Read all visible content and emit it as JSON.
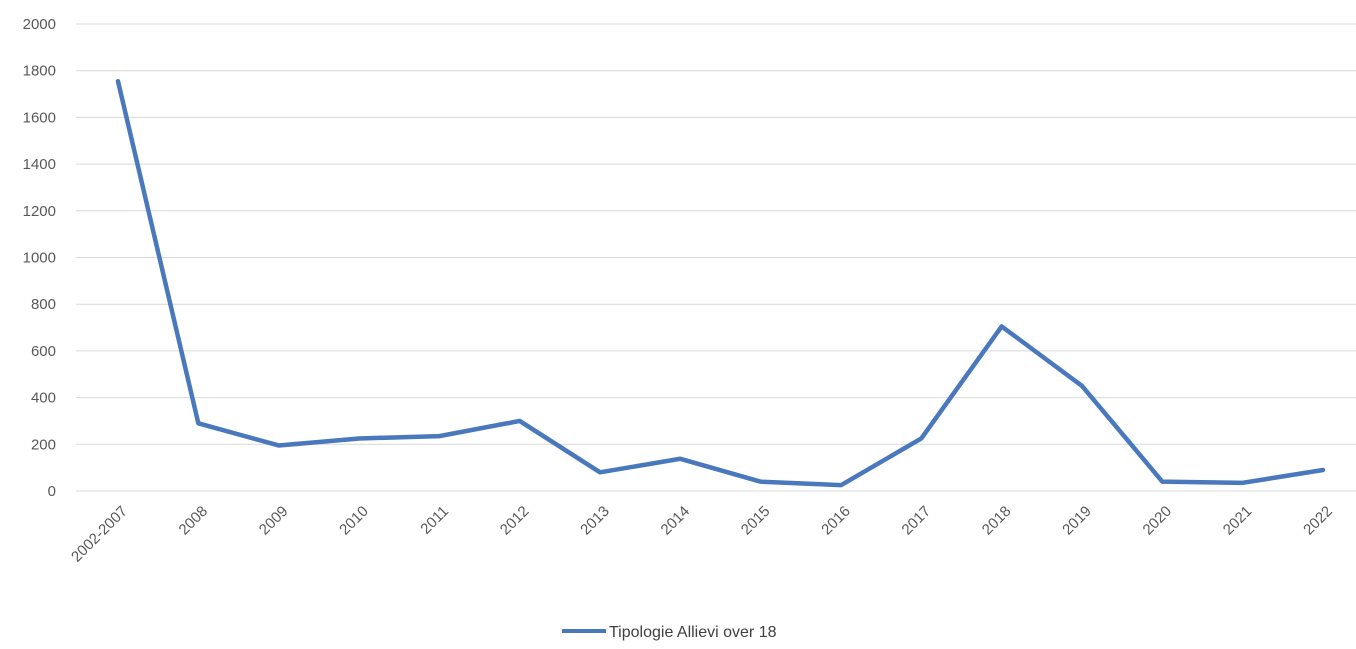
{
  "chart_data": {
    "type": "line",
    "categories": [
      "2002-2007",
      "2008",
      "2009",
      "2010",
      "2011",
      "2012",
      "2013",
      "2014",
      "2015",
      "2016",
      "2017",
      "2018",
      "2019",
      "2020",
      "2021",
      "2022"
    ],
    "series": [
      {
        "name": "Tipologie Allievi over 18",
        "values": [
          1755,
          290,
          195,
          225,
          235,
          300,
          80,
          138,
          40,
          25,
          225,
          705,
          450,
          40,
          35,
          90
        ],
        "color": "#4a78bd"
      }
    ],
    "y_ticks": [
      "0",
      "200",
      "400",
      "600",
      "800",
      "1000",
      "1200",
      "1400",
      "1600",
      "1800",
      "2000"
    ],
    "ylim": [
      0,
      2000
    ],
    "grid": true,
    "legend_position": "bottom"
  }
}
